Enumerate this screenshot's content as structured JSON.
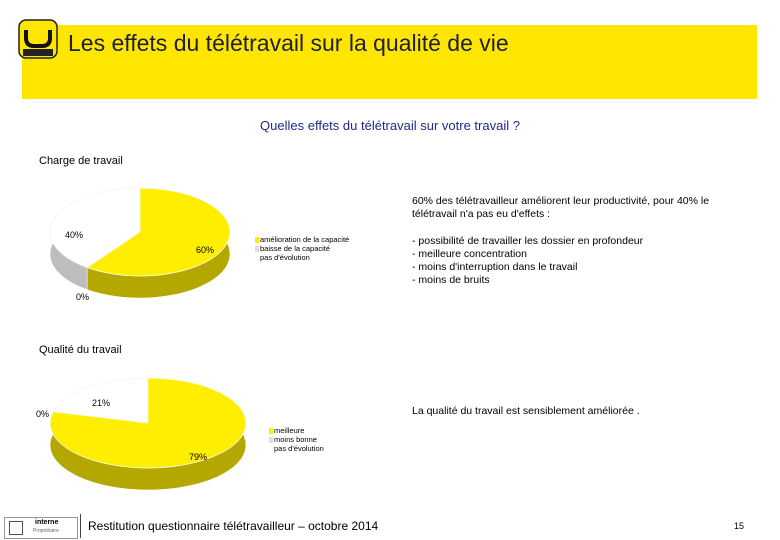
{
  "header": {
    "title": "Les effets du télétravail sur la qualité de vie"
  },
  "question": "Quelles effets du télétravail sur votre travail ?",
  "chart_data": [
    {
      "type": "pie",
      "title": "Charge de travail",
      "categories": [
        "amélioration de la capacité",
        "baisse de la capacité",
        "pas d'évolution"
      ],
      "values": [
        60,
        0,
        40
      ],
      "value_labels": [
        "60%",
        "0%",
        "40%"
      ],
      "colors": [
        "#ffee00",
        "#dddddd",
        "#ffffff"
      ],
      "legend_position": "right"
    },
    {
      "type": "pie",
      "title": "Qualité du travail",
      "categories": [
        "meilleure",
        "moins bonne",
        "pas d'évolution"
      ],
      "values": [
        79,
        0,
        21
      ],
      "value_labels": [
        "79%",
        "0%",
        "21%"
      ],
      "colors": [
        "#ffee00",
        "#dddddd",
        "#ffffff"
      ],
      "legend_position": "right"
    }
  ],
  "notes": {
    "charge_summary": "60% des télétravailleur améliorent leur productivité, pour 40% le télétravail n'a pas eu d'effets :",
    "charge_bullets": [
      "- possibilité de travailler les dossier en profondeur",
      "- meilleure concentration",
      "- moins d'interruption dans le travail",
      "- moins de bruits"
    ],
    "qualite_summary": "La qualité du travail est sensiblement améliorée ."
  },
  "footer": {
    "text": "Restitution questionnaire télétravailleur – octobre 2014",
    "page": "15",
    "badge_line1": "interne",
    "badge_line2": "Propriétaire"
  },
  "colors": {
    "banner": "#ffe600",
    "pie_yellow": "#ffee00",
    "pie_yellow_side": "#b5a800",
    "pie_gray_side": "#9a9a9a"
  }
}
